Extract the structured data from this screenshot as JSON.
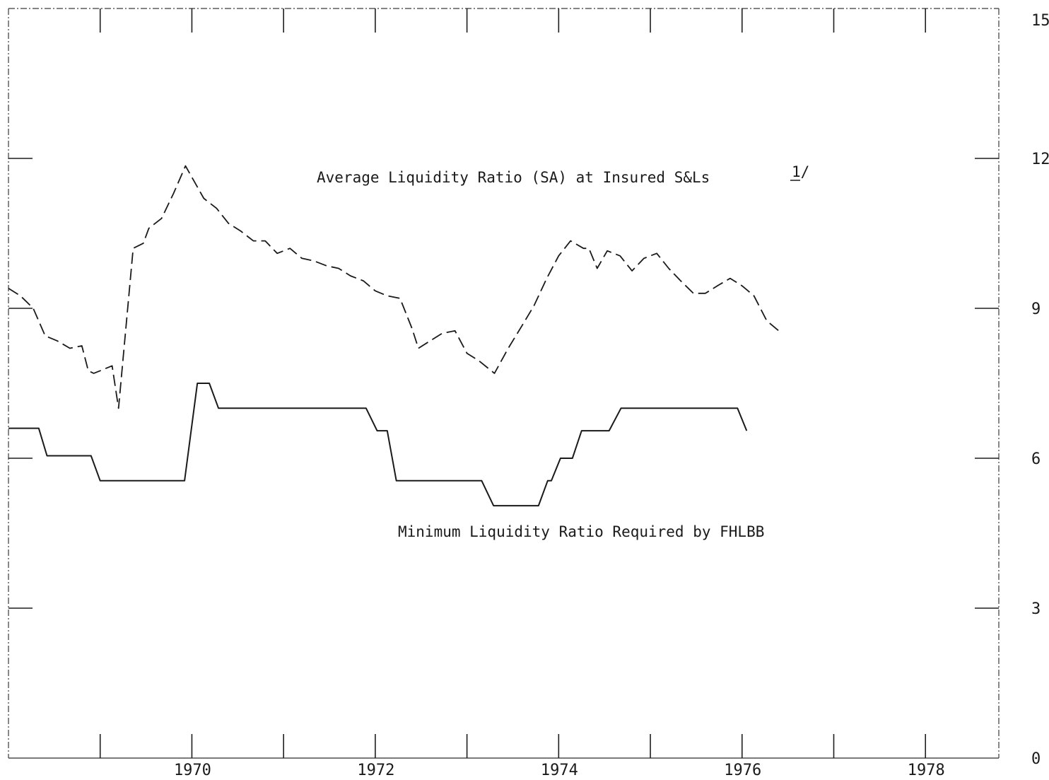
{
  "chart_data": {
    "type": "line",
    "title": "",
    "xlabel": "",
    "ylabel": "",
    "xlim": [
      1968,
      1978.8
    ],
    "ylim": [
      0,
      15
    ],
    "x_ticks": [
      1969,
      1970,
      1971,
      1972,
      1973,
      1974,
      1975,
      1976,
      1977,
      1978
    ],
    "x_tick_labels": [
      {
        "x": 1970,
        "label": "1970"
      },
      {
        "x": 1972,
        "label": "1972"
      },
      {
        "x": 1974,
        "label": "1974"
      },
      {
        "x": 1976,
        "label": "1976"
      },
      {
        "x": 1978,
        "label": "1978"
      }
    ],
    "y_ticks": [
      0,
      3,
      6,
      9,
      12,
      15
    ],
    "y_tick_labels": [
      "0",
      "3",
      "6",
      "9",
      "12",
      "15"
    ],
    "y_axis_side": "right",
    "grid": false,
    "legend": "none",
    "series": [
      {
        "name": "Average Liquidity Ratio (SA) at Insured S&Ls",
        "label_suffix": "1/",
        "style": "dashed",
        "points": [
          [
            1968.0,
            9.4
          ],
          [
            1968.13,
            9.25
          ],
          [
            1968.27,
            9.0
          ],
          [
            1968.4,
            8.45
          ],
          [
            1968.53,
            8.35
          ],
          [
            1968.67,
            8.2
          ],
          [
            1968.8,
            8.25
          ],
          [
            1968.87,
            7.75
          ],
          [
            1968.93,
            7.7
          ],
          [
            1969.0,
            7.75
          ],
          [
            1969.13,
            7.85
          ],
          [
            1969.2,
            7.0
          ],
          [
            1969.36,
            10.2
          ],
          [
            1969.47,
            10.3
          ],
          [
            1969.53,
            10.6
          ],
          [
            1969.67,
            10.8
          ],
          [
            1969.8,
            11.3
          ],
          [
            1969.93,
            11.85
          ],
          [
            1970.13,
            11.2
          ],
          [
            1970.27,
            11.0
          ],
          [
            1970.4,
            10.7
          ],
          [
            1970.53,
            10.55
          ],
          [
            1970.67,
            10.35
          ],
          [
            1970.8,
            10.35
          ],
          [
            1970.93,
            10.1
          ],
          [
            1971.07,
            10.2
          ],
          [
            1971.2,
            10.0
          ],
          [
            1971.33,
            9.95
          ],
          [
            1971.47,
            9.85
          ],
          [
            1971.6,
            9.8
          ],
          [
            1971.73,
            9.65
          ],
          [
            1971.87,
            9.55
          ],
          [
            1972.0,
            9.35
          ],
          [
            1972.13,
            9.25
          ],
          [
            1972.27,
            9.2
          ],
          [
            1972.4,
            8.6
          ],
          [
            1972.47,
            8.2
          ],
          [
            1972.6,
            8.35
          ],
          [
            1972.73,
            8.5
          ],
          [
            1972.87,
            8.55
          ],
          [
            1973.0,
            8.1
          ],
          [
            1973.13,
            7.95
          ],
          [
            1973.3,
            7.7
          ],
          [
            1973.45,
            8.2
          ],
          [
            1973.6,
            8.65
          ],
          [
            1973.73,
            9.05
          ],
          [
            1973.87,
            9.6
          ],
          [
            1974.0,
            10.05
          ],
          [
            1974.13,
            10.35
          ],
          [
            1974.27,
            10.2
          ],
          [
            1974.33,
            10.2
          ],
          [
            1974.42,
            9.8
          ],
          [
            1974.53,
            10.15
          ],
          [
            1974.67,
            10.05
          ],
          [
            1974.8,
            9.75
          ],
          [
            1974.93,
            10.0
          ],
          [
            1975.07,
            10.1
          ],
          [
            1975.2,
            9.8
          ],
          [
            1975.33,
            9.55
          ],
          [
            1975.47,
            9.3
          ],
          [
            1975.6,
            9.3
          ],
          [
            1975.73,
            9.45
          ],
          [
            1975.87,
            9.6
          ],
          [
            1976.0,
            9.45
          ],
          [
            1976.13,
            9.25
          ],
          [
            1976.27,
            8.75
          ],
          [
            1976.4,
            8.55
          ]
        ]
      },
      {
        "name": "Minimum Liquidity Ratio Required by FHLBB",
        "style": "solid",
        "points": [
          [
            1968.0,
            6.6
          ],
          [
            1968.33,
            6.6
          ],
          [
            1968.42,
            6.05
          ],
          [
            1968.9,
            6.05
          ],
          [
            1969.0,
            5.55
          ],
          [
            1969.92,
            5.55
          ],
          [
            1970.06,
            7.5
          ],
          [
            1970.19,
            7.5
          ],
          [
            1970.29,
            7.0
          ],
          [
            1971.9,
            7.0
          ],
          [
            1972.02,
            6.55
          ],
          [
            1972.13,
            6.55
          ],
          [
            1972.23,
            5.55
          ],
          [
            1973.16,
            5.55
          ],
          [
            1973.29,
            5.05
          ],
          [
            1973.78,
            5.05
          ],
          [
            1973.88,
            5.55
          ],
          [
            1973.92,
            5.55
          ],
          [
            1974.02,
            6.0
          ],
          [
            1974.15,
            6.0
          ],
          [
            1974.25,
            6.55
          ],
          [
            1974.55,
            6.55
          ],
          [
            1974.68,
            7.0
          ],
          [
            1975.95,
            7.0
          ],
          [
            1976.05,
            6.55
          ]
        ]
      }
    ],
    "annotations": [
      {
        "text": "Average Liquidity Ratio (SA) at Insured S&Ls",
        "series": 0
      },
      {
        "text": "1/",
        "series": 0
      },
      {
        "text": "Minimum Liquidity Ratio Required by FHLBB",
        "series": 1
      }
    ]
  }
}
